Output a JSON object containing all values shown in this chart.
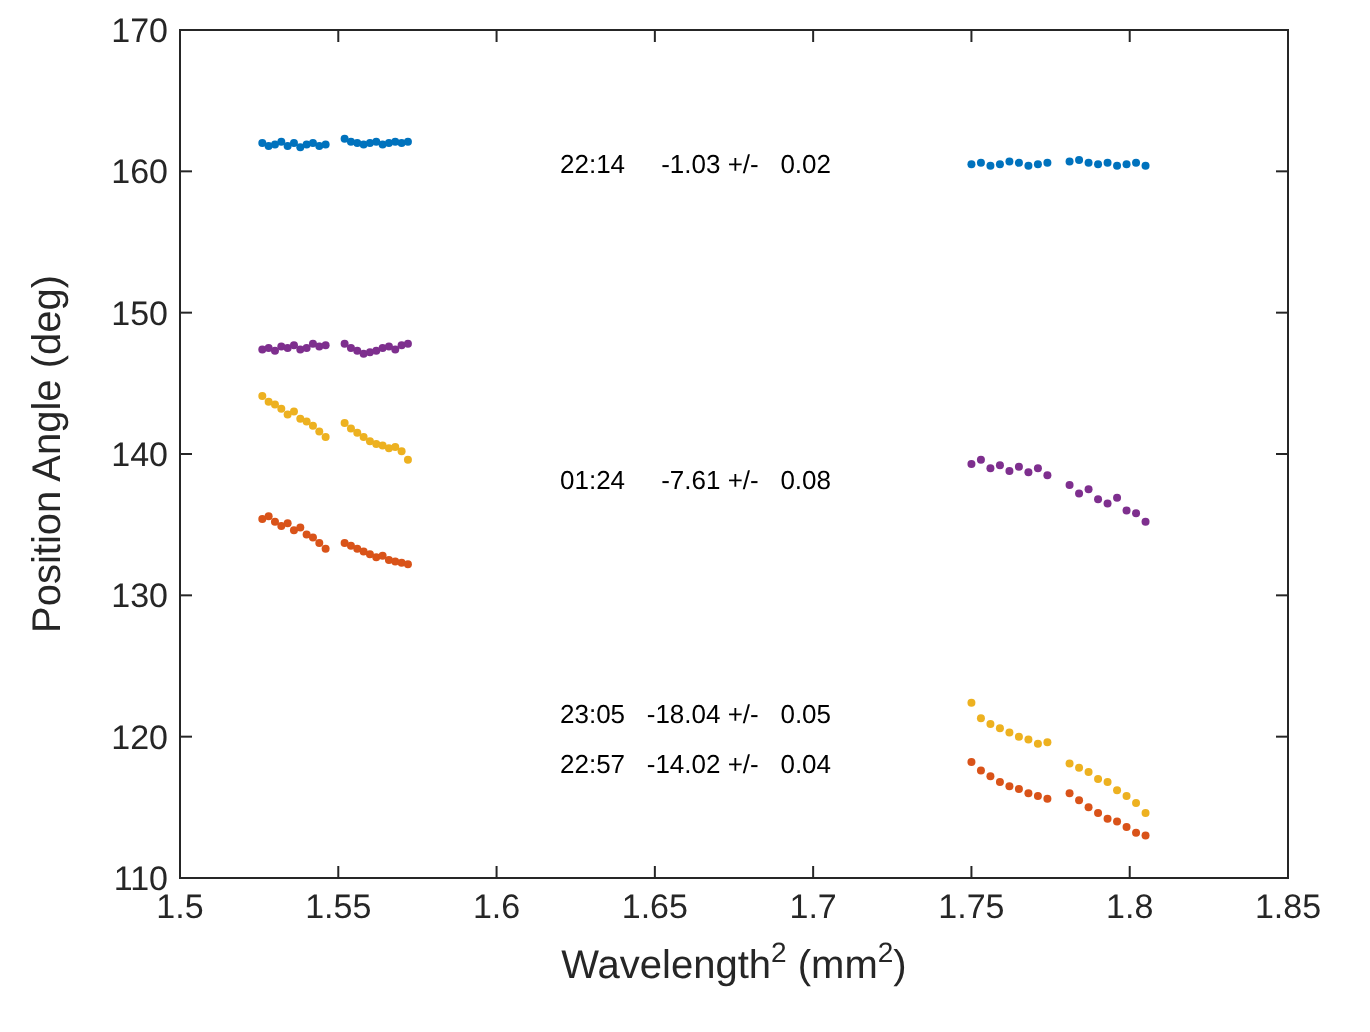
{
  "chart_data": {
    "type": "scatter",
    "xlabel": "Wavelength$^{2}$ (mm$^{2}$)",
    "ylabel": "Position Angle (deg)",
    "x": [
      1.526,
      1.528,
      1.53,
      1.532,
      1.534,
      1.536,
      1.538,
      1.54,
      1.542,
      1.544,
      1.546,
      1.552,
      1.554,
      1.556,
      1.558,
      1.56,
      1.562,
      1.564,
      1.566,
      1.568,
      1.57,
      1.572,
      1.75,
      1.753,
      1.756,
      1.759,
      1.762,
      1.765,
      1.768,
      1.771,
      1.774,
      1.781,
      1.784,
      1.787,
      1.79,
      1.793,
      1.796,
      1.799,
      1.802,
      1.805
    ],
    "series": [
      {
        "color": "#0072bd",
        "values": [
          162,
          161.8,
          161.9,
          162.1,
          161.8,
          162.0,
          161.7,
          161.9,
          162.0,
          161.8,
          161.9,
          162.3,
          162.1,
          162.0,
          161.9,
          162.0,
          162.1,
          161.9,
          162.0,
          162.1,
          162.0,
          162.1,
          160.5,
          160.6,
          160.4,
          160.5,
          160.7,
          160.6,
          160.4,
          160.5,
          160.6,
          160.7,
          160.8,
          160.6,
          160.5,
          160.6,
          160.4,
          160.5,
          160.6,
          160.4
        ]
      },
      {
        "color": "#7e2f8e",
        "values": [
          147.4,
          147.5,
          147.3,
          147.6,
          147.5,
          147.7,
          147.4,
          147.5,
          147.8,
          147.6,
          147.7,
          147.8,
          147.5,
          147.3,
          147.1,
          147.2,
          147.3,
          147.5,
          147.6,
          147.4,
          147.7,
          147.8,
          139.3,
          139.6,
          139.0,
          139.2,
          138.8,
          139.1,
          138.7,
          139.0,
          138.5,
          137.8,
          137.2,
          137.5,
          136.8,
          136.5,
          136.9,
          136.0,
          135.8,
          135.2
        ]
      },
      {
        "color": "#edb120",
        "values": [
          144.1,
          143.7,
          143.5,
          143.2,
          142.8,
          143.0,
          142.5,
          142.3,
          142.0,
          141.6,
          141.2,
          142.2,
          141.8,
          141.5,
          141.2,
          140.9,
          140.7,
          140.6,
          140.4,
          140.5,
          140.2,
          139.6,
          122.4,
          121.3,
          120.9,
          120.6,
          120.3,
          120.0,
          119.8,
          119.5,
          119.6,
          118.1,
          117.8,
          117.5,
          117.0,
          116.8,
          116.2,
          115.8,
          115.3,
          114.6
        ]
      },
      {
        "color": "#d95319",
        "values": [
          135.4,
          135.6,
          135.2,
          134.9,
          135.1,
          134.6,
          134.8,
          134.3,
          134.1,
          133.7,
          133.3,
          133.7,
          133.5,
          133.3,
          133.1,
          132.9,
          132.7,
          132.8,
          132.5,
          132.4,
          132.3,
          132.2,
          118.2,
          117.6,
          117.2,
          116.8,
          116.5,
          116.3,
          116.0,
          115.8,
          115.6,
          116.0,
          115.5,
          115.0,
          114.6,
          114.2,
          114.0,
          113.6,
          113.2,
          113.0
        ]
      }
    ],
    "xlim": [
      1.5,
      1.85
    ],
    "xticks": [
      1.5,
      1.55,
      1.6,
      1.65,
      1.7,
      1.75,
      1.8,
      1.85
    ],
    "ylim": [
      110,
      170
    ],
    "yticks": [
      110,
      120,
      130,
      140,
      150,
      160,
      170
    ],
    "grid": false,
    "marker": "circle",
    "annotations": [
      "22:14     -1.03 +/-   0.02",
      "01:24     -7.61 +/-   0.08",
      "23:05   -18.04 +/-   0.05",
      "22:57   -14.02 +/-   0.04"
    ]
  }
}
